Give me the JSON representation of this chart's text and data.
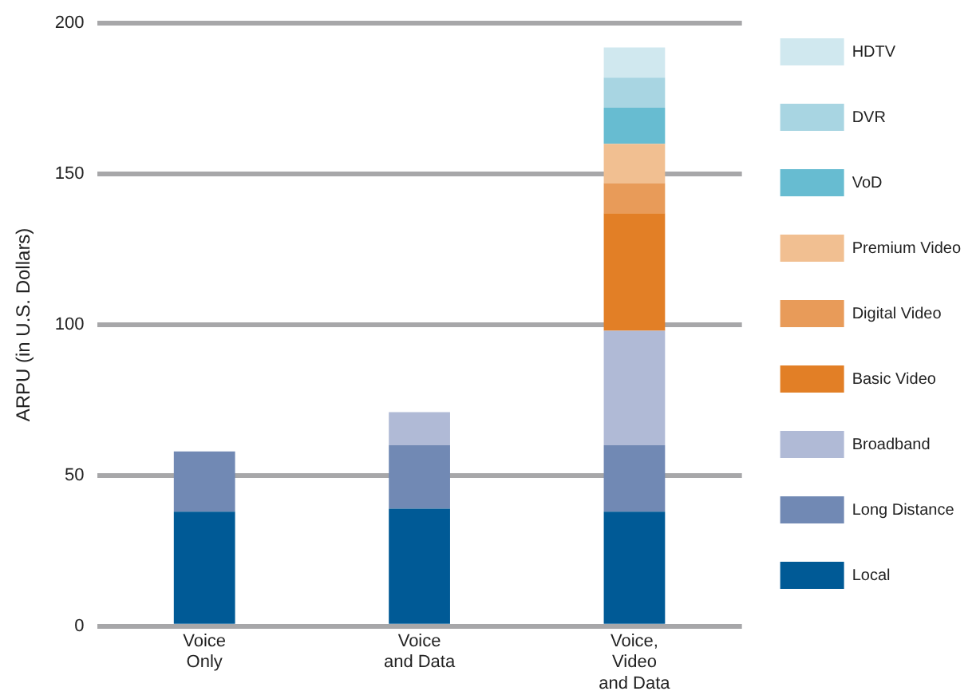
{
  "chart_data": {
    "type": "bar",
    "stacked": true,
    "ylabel": "ARPU (in U.S. Dollars)",
    "categories": [
      "Voice Only",
      "Voice and Data",
      "Voice, Video and Data"
    ],
    "series": [
      {
        "name": "Local",
        "color": "#005a96",
        "values": [
          38,
          39,
          38
        ]
      },
      {
        "name": "Long Distance",
        "color": "#7189b4",
        "values": [
          20,
          21,
          22
        ]
      },
      {
        "name": "Broadband",
        "color": "#b0bad6",
        "values": [
          null,
          11,
          38
        ]
      },
      {
        "name": "Basic Video",
        "color": "#e27f26",
        "values": [
          null,
          null,
          39
        ]
      },
      {
        "name": "Digital Video",
        "color": "#e89b59",
        "values": [
          null,
          null,
          10
        ]
      },
      {
        "name": "Premium Video",
        "color": "#f1bf91",
        "values": [
          null,
          null,
          13
        ]
      },
      {
        "name": "VoD",
        "color": "#67bcd1",
        "values": [
          null,
          null,
          12
        ]
      },
      {
        "name": "DVR",
        "color": "#a8d5e2",
        "values": [
          null,
          null,
          10
        ]
      },
      {
        "name": "HDTV",
        "color": "#d0e8ef",
        "values": [
          null,
          null,
          10
        ]
      }
    ],
    "ylim": [
      0,
      200
    ],
    "yticks": [
      0,
      50,
      100,
      150,
      200
    ],
    "grid": "y",
    "legend": "right"
  }
}
